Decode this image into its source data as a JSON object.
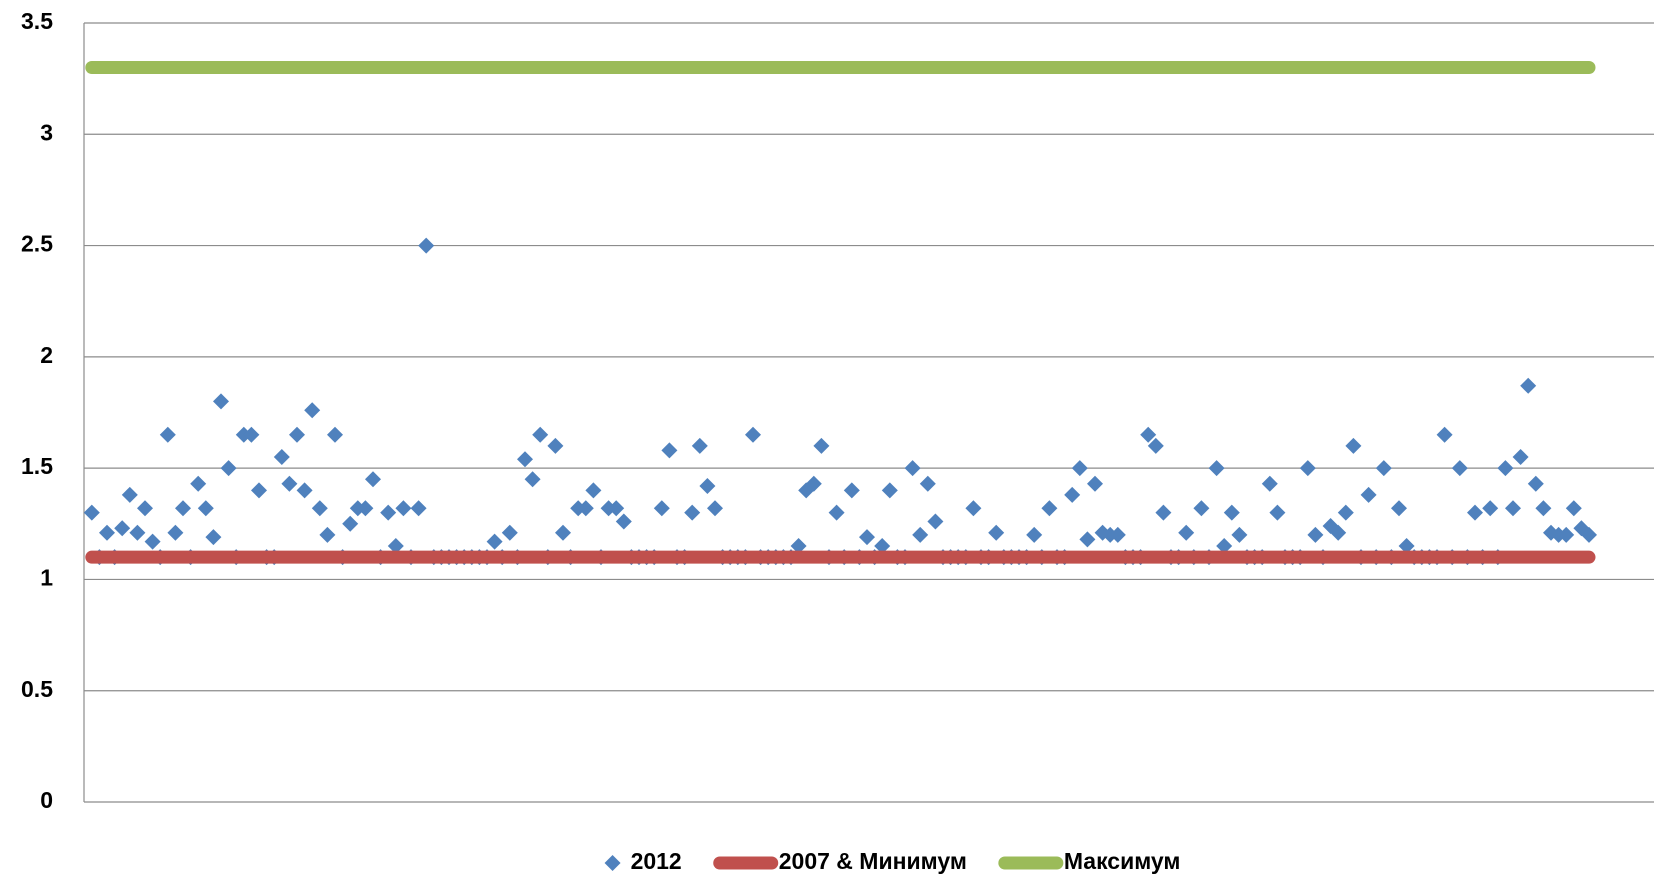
{
  "chart_data": {
    "type": "scatter",
    "categories": [
      null,
      null,
      null,
      null,
      null,
      null,
      null,
      null,
      null,
      null,
      null,
      null,
      null,
      null,
      null,
      null,
      null,
      null,
      null,
      null,
      null,
      null,
      null,
      null,
      null,
      null,
      null,
      null,
      null,
      null,
      null,
      null,
      null,
      null,
      null,
      null,
      null,
      null,
      null,
      null,
      null,
      null,
      null,
      null,
      null,
      null,
      null,
      null,
      null,
      null,
      null,
      null,
      null,
      null,
      null,
      null,
      null,
      null,
      null,
      null,
      null,
      null,
      null,
      null,
      null,
      null,
      null,
      null,
      null,
      null,
      null,
      null,
      null,
      null,
      null,
      null,
      null,
      null,
      null,
      null,
      null,
      null,
      null,
      null,
      null,
      null,
      null,
      null,
      null,
      null,
      null,
      null,
      null,
      null,
      null,
      null,
      null,
      null,
      null,
      null,
      null,
      null,
      null,
      null,
      null,
      null,
      null,
      null,
      null,
      null,
      null,
      null,
      null,
      null,
      null,
      null,
      null,
      null,
      null,
      null,
      null,
      null,
      null,
      null,
      null,
      null,
      null,
      null,
      null,
      null,
      null,
      null,
      null,
      null,
      null,
      null,
      null,
      null,
      null,
      null,
      null,
      null,
      null,
      null,
      null,
      null,
      null,
      null,
      null,
      null,
      null,
      null,
      null,
      null,
      null,
      null,
      null,
      null,
      null,
      null,
      null,
      null,
      null,
      null,
      null,
      null,
      null,
      null,
      null,
      null,
      null,
      null,
      null,
      null,
      null,
      null,
      null,
      null,
      null,
      null,
      null,
      null,
      null,
      null,
      null,
      null,
      null,
      null,
      null,
      null,
      null,
      null,
      null,
      null,
      null,
      null,
      null,
      null
    ],
    "series": [
      {
        "name": "2012",
        "type": "scatter",
        "color": "#4f81bd",
        "values": [
          1.3,
          1.1,
          1.21,
          1.1,
          1.23,
          1.38,
          1.21,
          1.32,
          1.17,
          1.1,
          1.65,
          1.21,
          1.32,
          1.1,
          1.43,
          1.32,
          1.19,
          1.8,
          1.5,
          1.1,
          1.65,
          1.65,
          1.4,
          1.1,
          1.1,
          1.55,
          1.43,
          1.65,
          1.4,
          1.76,
          1.32,
          1.2,
          1.65,
          1.1,
          1.25,
          1.32,
          1.32,
          1.45,
          1.1,
          1.3,
          1.15,
          1.32,
          1.1,
          1.32,
          2.5,
          1.1,
          1.1,
          1.1,
          1.1,
          1.1,
          1.1,
          1.1,
          1.1,
          1.17,
          1.1,
          1.21,
          1.1,
          1.54,
          1.45,
          1.65,
          1.1,
          1.6,
          1.21,
          1.1,
          1.32,
          1.32,
          1.4,
          1.1,
          1.32,
          1.32,
          1.26,
          1.1,
          1.1,
          1.1,
          1.1,
          1.32,
          1.58,
          1.1,
          1.1,
          1.3,
          1.6,
          1.42,
          1.32,
          1.1,
          1.1,
          1.1,
          1.1,
          1.65,
          1.1,
          1.1,
          1.1,
          1.1,
          1.1,
          1.15,
          1.4,
          1.43,
          1.6,
          1.1,
          1.3,
          1.1,
          1.4,
          1.1,
          1.19,
          1.1,
          1.15,
          1.4,
          1.1,
          1.1,
          1.5,
          1.2,
          1.43,
          1.26,
          1.1,
          1.1,
          1.1,
          1.1,
          1.32,
          1.1,
          1.1,
          1.21,
          1.1,
          1.1,
          1.1,
          1.1,
          1.2,
          1.1,
          1.32,
          1.1,
          1.1,
          1.38,
          1.5,
          1.18,
          1.43,
          1.21,
          1.2,
          1.2,
          1.1,
          1.1,
          1.1,
          1.65,
          1.6,
          1.3,
          1.1,
          1.1,
          1.21,
          1.1,
          1.32,
          1.1,
          1.5,
          1.15,
          1.3,
          1.2,
          1.1,
          1.1,
          1.1,
          1.43,
          1.3,
          1.1,
          1.1,
          1.1,
          1.5,
          1.2,
          1.1,
          1.24,
          1.21,
          1.3,
          1.6,
          1.1,
          1.38,
          1.1,
          1.5,
          1.1,
          1.32,
          1.15,
          1.1,
          1.1,
          1.1,
          1.1,
          1.65,
          1.1,
          1.5,
          1.1,
          1.3,
          1.1,
          1.32,
          1.1,
          1.5,
          1.32,
          1.55,
          1.87,
          1.43,
          1.32,
          1.21,
          1.2,
          1.2,
          1.32,
          1.23,
          1.2
        ]
      },
      {
        "name": "2007 & Минимум",
        "type": "line",
        "color": "#c0504d",
        "values": [
          1.1,
          1.1,
          1.1,
          1.1,
          1.1,
          1.1,
          1.1,
          1.1,
          1.1,
          1.1,
          1.1,
          1.1,
          1.1,
          1.1,
          1.1,
          1.1,
          1.1,
          1.1,
          1.1,
          1.1,
          1.1,
          1.1,
          1.1,
          1.1,
          1.1,
          1.1,
          1.1,
          1.1,
          1.1,
          1.1,
          1.1,
          1.1,
          1.1,
          1.1,
          1.1,
          1.1,
          1.1,
          1.1,
          1.1,
          1.1,
          1.1,
          1.1,
          1.1,
          1.1,
          1.1,
          1.1,
          1.1,
          1.1,
          1.1,
          1.1,
          1.1,
          1.1,
          1.1,
          1.1,
          1.1,
          1.1,
          1.1,
          1.1,
          1.1,
          1.1,
          1.1,
          1.1,
          1.1,
          1.1,
          1.1,
          1.1,
          1.1,
          1.1,
          1.1,
          1.1,
          1.1,
          1.1,
          1.1,
          1.1,
          1.1,
          1.1,
          1.1,
          1.1,
          1.1,
          1.1,
          1.1,
          1.1,
          1.1,
          1.1,
          1.1,
          1.1,
          1.1,
          1.1,
          1.1,
          1.1,
          1.1,
          1.1,
          1.1,
          1.1,
          1.1,
          1.1,
          1.1,
          1.1,
          1.1,
          1.1,
          1.1,
          1.1,
          1.1,
          1.1,
          1.1,
          1.1,
          1.1,
          1.1,
          1.1,
          1.1,
          1.1,
          1.1,
          1.1,
          1.1,
          1.1,
          1.1,
          1.1,
          1.1,
          1.1,
          1.1,
          1.1,
          1.1,
          1.1,
          1.1,
          1.1,
          1.1,
          1.1,
          1.1,
          1.1,
          1.1,
          1.1,
          1.1,
          1.1,
          1.1,
          1.1,
          1.1,
          1.1,
          1.1,
          1.1,
          1.1,
          1.1,
          1.1,
          1.1,
          1.1,
          1.1,
          1.1,
          1.1,
          1.1,
          1.1,
          1.1,
          1.1,
          1.1,
          1.1,
          1.1,
          1.1,
          1.1,
          1.1,
          1.1,
          1.1,
          1.1,
          1.1,
          1.1,
          1.1,
          1.1,
          1.1,
          1.1,
          1.1,
          1.1,
          1.1,
          1.1,
          1.1,
          1.1,
          1.1,
          1.1,
          1.1,
          1.1,
          1.1,
          1.1,
          1.1,
          1.1,
          1.1,
          1.1,
          1.1,
          1.1,
          1.1,
          1.1,
          1.1,
          1.1,
          1.1,
          1.1,
          1.1,
          1.1,
          1.1,
          1.1,
          1.1,
          1.1,
          1.1,
          1.1
        ]
      },
      {
        "name": "Максимум",
        "type": "line",
        "color": "#9bbb59",
        "values": [
          3.3,
          3.3,
          3.3,
          3.3,
          3.3,
          3.3,
          3.3,
          3.3,
          3.3,
          3.3,
          3.3,
          3.3,
          3.3,
          3.3,
          3.3,
          3.3,
          3.3,
          3.3,
          3.3,
          3.3,
          3.3,
          3.3,
          3.3,
          3.3,
          3.3,
          3.3,
          3.3,
          3.3,
          3.3,
          3.3,
          3.3,
          3.3,
          3.3,
          3.3,
          3.3,
          3.3,
          3.3,
          3.3,
          3.3,
          3.3,
          3.3,
          3.3,
          3.3,
          3.3,
          3.3,
          3.3,
          3.3,
          3.3,
          3.3,
          3.3,
          3.3,
          3.3,
          3.3,
          3.3,
          3.3,
          3.3,
          3.3,
          3.3,
          3.3,
          3.3,
          3.3,
          3.3,
          3.3,
          3.3,
          3.3,
          3.3,
          3.3,
          3.3,
          3.3,
          3.3,
          3.3,
          3.3,
          3.3,
          3.3,
          3.3,
          3.3,
          3.3,
          3.3,
          3.3,
          3.3,
          3.3,
          3.3,
          3.3,
          3.3,
          3.3,
          3.3,
          3.3,
          3.3,
          3.3,
          3.3,
          3.3,
          3.3,
          3.3,
          3.3,
          3.3,
          3.3,
          3.3,
          3.3,
          3.3,
          3.3,
          3.3,
          3.3,
          3.3,
          3.3,
          3.3,
          3.3,
          3.3,
          3.3,
          3.3,
          3.3,
          3.3,
          3.3,
          3.3,
          3.3,
          3.3,
          3.3,
          3.3,
          3.3,
          3.3,
          3.3,
          3.3,
          3.3,
          3.3,
          3.3,
          3.3,
          3.3,
          3.3,
          3.3,
          3.3,
          3.3,
          3.3,
          3.3,
          3.3,
          3.3,
          3.3,
          3.3,
          3.3,
          3.3,
          3.3,
          3.3,
          3.3,
          3.3,
          3.3,
          3.3,
          3.3,
          3.3,
          3.3,
          3.3,
          3.3,
          3.3,
          3.3,
          3.3,
          3.3,
          3.3,
          3.3,
          3.3,
          3.3,
          3.3,
          3.3,
          3.3,
          3.3,
          3.3,
          3.3,
          3.3,
          3.3,
          3.3,
          3.3,
          3.3,
          3.3,
          3.3,
          3.3,
          3.3,
          3.3,
          3.3,
          3.3,
          3.3,
          3.3,
          3.3,
          3.3,
          3.3,
          3.3,
          3.3,
          3.3,
          3.3,
          3.3,
          3.3,
          3.3,
          3.3,
          3.3,
          3.3,
          3.3,
          3.3,
          3.3,
          3.3,
          3.3,
          3.3,
          3.3,
          3.3
        ]
      }
    ],
    "ylim": [
      0,
      3.5
    ],
    "yticks": [
      0,
      0.5,
      1,
      1.5,
      2,
      2.5,
      3,
      3.5
    ],
    "grid": true,
    "legend": "bottom"
  }
}
